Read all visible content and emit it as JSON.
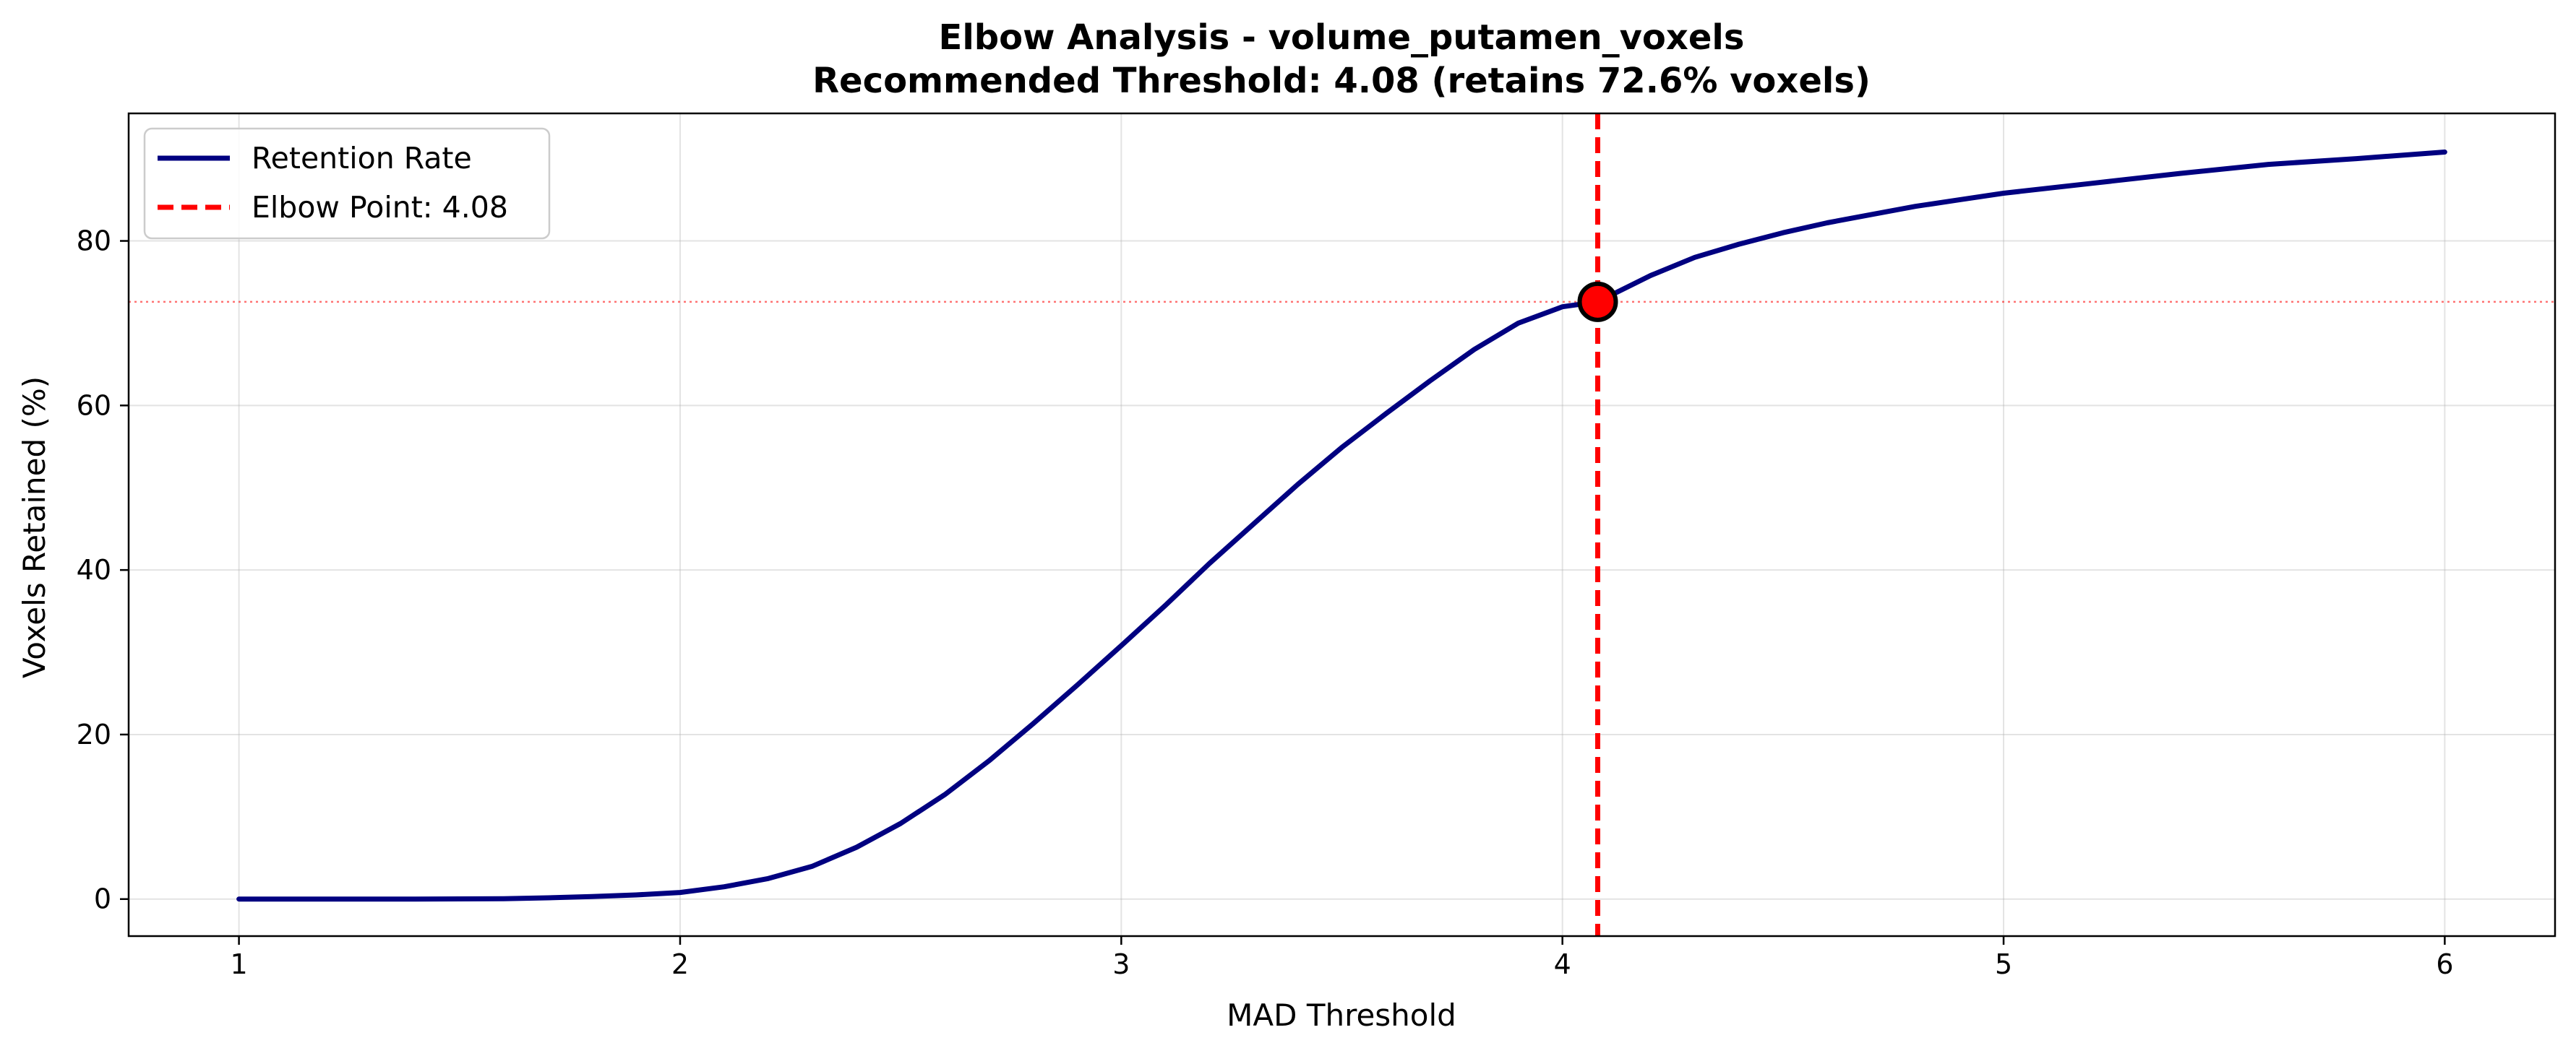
{
  "chart_data": {
    "type": "line",
    "title": "Elbow Analysis - volume_putamen_voxels",
    "subtitle": "Recommended Threshold: 4.08 (retains 72.6% voxels)",
    "xlabel": "MAD Threshold",
    "ylabel": "Voxels Retained (%)",
    "xlim": [
      0.75,
      6.25
    ],
    "ylim": [
      -4.5,
      95.5
    ],
    "xticks": [
      1,
      2,
      3,
      4,
      5,
      6
    ],
    "yticks": [
      0,
      20,
      40,
      60,
      80
    ],
    "grid": true,
    "legend": {
      "location": "top-left",
      "entries": [
        {
          "label": "Retention Rate",
          "style": "solid",
          "color": "#000080"
        },
        {
          "label": "Elbow Point: 4.08",
          "style": "dashed",
          "color": "#ff0000"
        }
      ]
    },
    "series": [
      {
        "name": "Retention Rate",
        "color": "#000080",
        "x": [
          1.0,
          1.2,
          1.4,
          1.6,
          1.7,
          1.8,
          1.9,
          2.0,
          2.1,
          2.2,
          2.3,
          2.4,
          2.5,
          2.6,
          2.7,
          2.8,
          2.9,
          3.0,
          3.1,
          3.2,
          3.3,
          3.4,
          3.5,
          3.6,
          3.7,
          3.8,
          3.9,
          4.0,
          4.08,
          4.2,
          4.3,
          4.4,
          4.5,
          4.6,
          4.7,
          4.8,
          4.9,
          5.0,
          5.2,
          5.4,
          5.6,
          5.8,
          6.0
        ],
        "y": [
          0,
          0,
          0,
          0.05,
          0.15,
          0.3,
          0.5,
          0.8,
          1.5,
          2.5,
          4.0,
          6.3,
          9.2,
          12.7,
          16.8,
          21.3,
          26.0,
          30.8,
          35.7,
          40.8,
          45.6,
          50.4,
          54.9,
          59.0,
          63.0,
          66.8,
          70.0,
          72.0,
          72.6,
          75.8,
          78.0,
          79.6,
          81.0,
          82.2,
          83.2,
          84.2,
          85.0,
          85.8,
          87.0,
          88.2,
          89.3,
          90.0,
          90.8
        ]
      }
    ],
    "elbow": {
      "label": "Elbow Point: 4.08",
      "x": 4.08,
      "y": 72.6,
      "color": "#ff0000"
    }
  }
}
